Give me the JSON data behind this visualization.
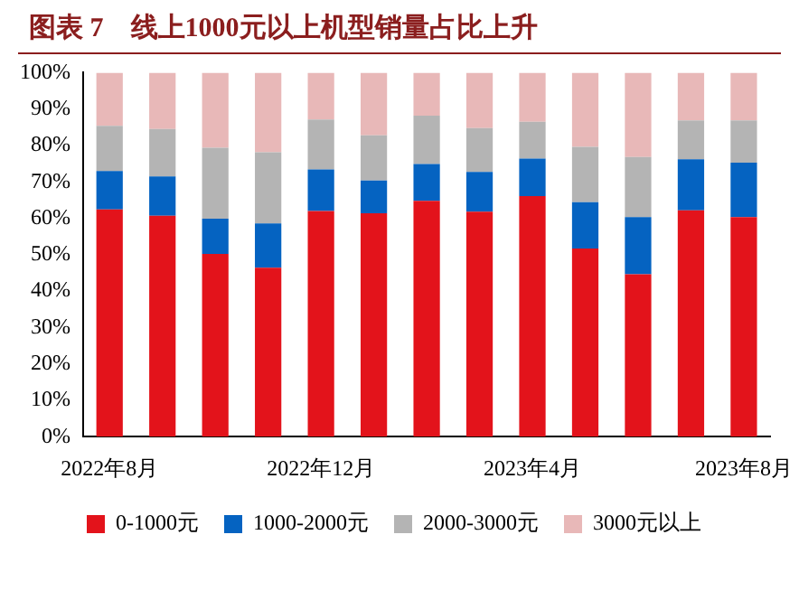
{
  "chart_data": {
    "type": "bar",
    "title": "图表 7　线上1000元以上机型销量占比上升",
    "stacked": true,
    "legend": "bottom",
    "grid": false,
    "categories": [
      "2022年8月",
      null,
      null,
      null,
      "2022年12月",
      null,
      null,
      null,
      "2023年4月",
      null,
      null,
      null,
      "2023年8月"
    ],
    "ylim": [
      0,
      100
    ],
    "yticks": [
      {
        "value": 0,
        "label": "0%"
      },
      {
        "value": 10,
        "label": "10%"
      },
      {
        "value": 20,
        "label": "20%"
      },
      {
        "value": 30,
        "label": "30%"
      },
      {
        "value": 40,
        "label": "40%"
      },
      {
        "value": 50,
        "label": "50%"
      },
      {
        "value": 60,
        "label": "60%"
      },
      {
        "value": 70,
        "label": "70%"
      },
      {
        "value": 80,
        "label": "80%"
      },
      {
        "value": 90,
        "label": "90%"
      },
      {
        "value": 100,
        "label": "100%"
      }
    ],
    "series": [
      {
        "name": "0-1000元",
        "color": "#e3131b",
        "values": [
          62.4,
          60.7,
          50.2,
          46.4,
          62.0,
          61.4,
          64.8,
          61.8,
          66.1,
          51.7,
          44.6,
          62.2,
          60.3
        ]
      },
      {
        "name": "1000-2000元",
        "color": "#0563c1",
        "values": [
          10.6,
          10.8,
          9.7,
          12.2,
          11.4,
          9.0,
          10.1,
          10.9,
          10.3,
          12.7,
          15.7,
          14.0,
          15.0
        ]
      },
      {
        "name": "2000-3000元",
        "color": "#b4b4b4",
        "values": [
          12.4,
          13.0,
          19.5,
          19.5,
          13.7,
          12.4,
          13.3,
          12.1,
          10.1,
          15.2,
          16.5,
          10.7,
          11.6
        ]
      },
      {
        "name": "3000元以上",
        "color": "#e8b8b8",
        "values": [
          14.6,
          15.5,
          20.6,
          21.9,
          12.9,
          17.2,
          11.8,
          15.2,
          13.5,
          20.4,
          23.2,
          13.1,
          13.1
        ]
      }
    ]
  }
}
